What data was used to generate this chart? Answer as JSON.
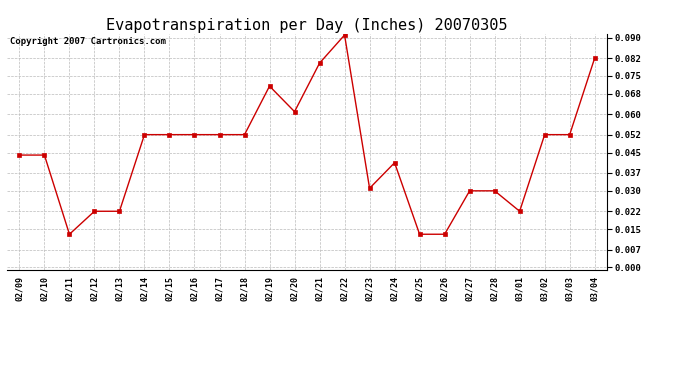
{
  "title": "Evapotranspiration per Day (Inches) 20070305",
  "copyright": "Copyright 2007 Cartronics.com",
  "dates": [
    "02/09",
    "02/10",
    "02/11",
    "02/12",
    "02/13",
    "02/14",
    "02/15",
    "02/16",
    "02/17",
    "02/18",
    "02/19",
    "02/20",
    "02/21",
    "02/22",
    "02/23",
    "02/24",
    "02/25",
    "02/26",
    "02/27",
    "02/28",
    "03/01",
    "03/02",
    "03/03",
    "03/04"
  ],
  "values": [
    0.044,
    0.044,
    0.013,
    0.022,
    0.022,
    0.052,
    0.052,
    0.052,
    0.052,
    0.052,
    0.071,
    0.061,
    0.08,
    0.091,
    0.031,
    0.041,
    0.013,
    0.013,
    0.03,
    0.03,
    0.022,
    0.052,
    0.052,
    0.082
  ],
  "ylim": [
    -0.001,
    0.0915
  ],
  "yticks": [
    0.0,
    0.007,
    0.015,
    0.022,
    0.03,
    0.037,
    0.045,
    0.052,
    0.06,
    0.068,
    0.075,
    0.082,
    0.09
  ],
  "line_color": "#cc0000",
  "marker_color": "#cc0000",
  "bg_color": "#ffffff",
  "grid_color": "#bbbbbb",
  "title_fontsize": 11,
  "copyright_fontsize": 6.5
}
